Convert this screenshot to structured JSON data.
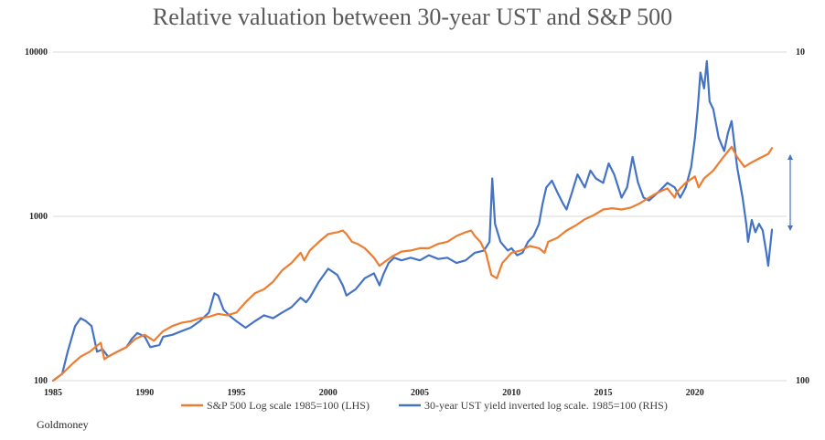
{
  "chart_data": {
    "type": "line",
    "title": "Relative valuation between 30-year UST and S&P 500",
    "source": "Goldmoney",
    "x_ticks": [
      "1985",
      "1990",
      "1995",
      "2000",
      "2005",
      "2010",
      "2015",
      "2020"
    ],
    "xlim": [
      1985,
      2025
    ],
    "left_axis": {
      "scale": "log",
      "ylim": [
        100,
        10000
      ],
      "ticks": [
        "100",
        "1000",
        "10000"
      ]
    },
    "right_axis": {
      "scale": "log",
      "ticks": [
        "100",
        "10"
      ]
    },
    "legend_placement": "bottom",
    "colors": {
      "sp500": "#ed7d31",
      "ust": "#4472c4",
      "arrow": "#4472c4",
      "grid": "#d9d9d9"
    },
    "series": [
      {
        "name": "S&P 500 Log scale 1985=100 (LHS)",
        "axis": "left",
        "x": [
          1985.0,
          1985.5,
          1986.0,
          1986.5,
          1987.0,
          1987.6,
          1987.8,
          1988.0,
          1988.5,
          1989.0,
          1989.5,
          1990.0,
          1990.5,
          1991.0,
          1991.5,
          1992.0,
          1992.5,
          1993.0,
          1993.5,
          1994.0,
          1994.5,
          1995.0,
          1995.5,
          1996.0,
          1996.5,
          1997.0,
          1997.5,
          1998.0,
          1998.5,
          1998.7,
          1999.0,
          1999.5,
          2000.0,
          2000.5,
          2000.8,
          2001.0,
          2001.3,
          2001.6,
          2002.0,
          2002.5,
          2002.8,
          2003.0,
          2003.5,
          2004.0,
          2004.5,
          2005.0,
          2005.5,
          2006.0,
          2006.5,
          2007.0,
          2007.5,
          2007.8,
          2008.0,
          2008.3,
          2008.6,
          2008.9,
          2009.2,
          2009.5,
          2010.0,
          2010.5,
          2011.0,
          2011.5,
          2011.8,
          2012.0,
          2012.5,
          2013.0,
          2013.5,
          2014.0,
          2014.5,
          2015.0,
          2015.5,
          2016.0,
          2016.5,
          2017.0,
          2017.5,
          2018.0,
          2018.5,
          2018.9,
          2019.0,
          2019.5,
          2020.0,
          2020.2,
          2020.5,
          2021.0,
          2021.5,
          2022.0,
          2022.3,
          2022.7,
          2023.0,
          2023.5,
          2024.0,
          2024.2
        ],
        "values": [
          100,
          110,
          125,
          140,
          150,
          170,
          135,
          140,
          150,
          160,
          180,
          190,
          175,
          200,
          215,
          225,
          230,
          240,
          245,
          255,
          250,
          260,
          300,
          340,
          360,
          400,
          470,
          520,
          600,
          540,
          620,
          700,
          780,
          800,
          820,
          780,
          700,
          680,
          640,
          560,
          500,
          520,
          570,
          610,
          620,
          640,
          640,
          680,
          700,
          760,
          800,
          820,
          760,
          700,
          600,
          440,
          420,
          520,
          600,
          620,
          660,
          640,
          600,
          700,
          740,
          820,
          880,
          960,
          1020,
          1100,
          1120,
          1100,
          1130,
          1200,
          1300,
          1400,
          1480,
          1300,
          1400,
          1600,
          1750,
          1500,
          1700,
          1900,
          2250,
          2650,
          2300,
          2000,
          2100,
          2250,
          2400,
          2600
        ]
      },
      {
        "name": "30-year UST yield inverted log scale. 1985=100 (RHS)",
        "axis": "right",
        "x": [
          1985.0,
          1985.5,
          1985.8,
          1986.2,
          1986.5,
          1986.8,
          1987.1,
          1987.4,
          1987.7,
          1988.0,
          1988.5,
          1989.0,
          1989.3,
          1989.6,
          1990.0,
          1990.3,
          1990.8,
          1991.0,
          1991.5,
          1992.0,
          1992.5,
          1993.0,
          1993.5,
          1993.8,
          1994.0,
          1994.3,
          1994.6,
          1995.0,
          1995.5,
          1996.0,
          1996.5,
          1997.0,
          1997.5,
          1998.0,
          1998.5,
          1998.8,
          1999.0,
          1999.5,
          2000.0,
          2000.5,
          2000.8,
          2001.0,
          2001.5,
          2002.0,
          2002.5,
          2002.8,
          2003.0,
          2003.3,
          2003.6,
          2004.0,
          2004.5,
          2005.0,
          2005.5,
          2006.0,
          2006.5,
          2007.0,
          2007.5,
          2008.0,
          2008.5,
          2008.8,
          2008.95,
          2009.1,
          2009.4,
          2009.8,
          2010.0,
          2010.3,
          2010.6,
          2010.9,
          2011.2,
          2011.5,
          2011.7,
          2011.9,
          2012.2,
          2012.5,
          2012.8,
          2013.0,
          2013.3,
          2013.6,
          2014.0,
          2014.3,
          2014.6,
          2015.0,
          2015.3,
          2015.6,
          2016.0,
          2016.3,
          2016.6,
          2016.9,
          2017.2,
          2017.5,
          2018.0,
          2018.5,
          2018.9,
          2019.2,
          2019.5,
          2019.8,
          2020.0,
          2020.15,
          2020.3,
          2020.5,
          2020.65,
          2020.8,
          2021.0,
          2021.3,
          2021.6,
          2021.8,
          2022.0,
          2022.3,
          2022.6,
          2022.8,
          2022.9,
          2023.1,
          2023.3,
          2023.5,
          2023.7,
          2023.9,
          2024.0,
          2024.2
        ],
        "values": [
          100,
          110,
          150,
          215,
          240,
          230,
          215,
          150,
          155,
          140,
          150,
          160,
          180,
          195,
          185,
          160,
          165,
          185,
          190,
          200,
          210,
          230,
          260,
          340,
          330,
          270,
          250,
          230,
          210,
          230,
          250,
          240,
          260,
          280,
          320,
          300,
          320,
          400,
          480,
          440,
          380,
          330,
          360,
          420,
          450,
          380,
          440,
          520,
          560,
          540,
          560,
          540,
          580,
          550,
          560,
          520,
          540,
          600,
          620,
          700,
          1700,
          900,
          700,
          620,
          640,
          580,
          600,
          700,
          760,
          900,
          1200,
          1500,
          1650,
          1400,
          1200,
          1100,
          1400,
          1800,
          1500,
          1900,
          1700,
          1600,
          2100,
          1800,
          1300,
          1500,
          2300,
          1600,
          1300,
          1250,
          1400,
          1600,
          1500,
          1300,
          1500,
          2000,
          3000,
          4500,
          7500,
          6000,
          8800,
          5000,
          4500,
          3000,
          2500,
          3200,
          3800,
          2000,
          1300,
          900,
          700,
          950,
          800,
          900,
          820,
          600,
          500,
          830
        ]
      }
    ],
    "annotation": "double-headed arrow"
  }
}
